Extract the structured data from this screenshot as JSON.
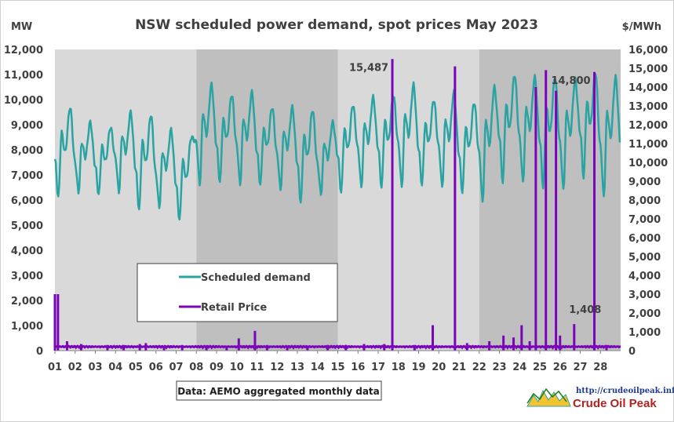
{
  "chart_data": {
    "type": "line",
    "title": "NSW scheduled power demand, spot prices May 2023",
    "y_left_label": "MW",
    "y_right_label": "$/MWh",
    "y_left_range": [
      0,
      12000
    ],
    "y_right_range": [
      0,
      16000
    ],
    "y_left_ticks": [
      "0",
      "1,000",
      "2,000",
      "3,000",
      "4,000",
      "5,000",
      "6,000",
      "7,000",
      "8,000",
      "9,000",
      "10,000",
      "11,000",
      "12,000"
    ],
    "y_right_ticks": [
      "0",
      "1,000",
      "2,000",
      "3,000",
      "4,000",
      "5,000",
      "6,000",
      "7,000",
      "8,000",
      "9,000",
      "10,000",
      "11,000",
      "12,000",
      "13,000",
      "14,000",
      "15,000",
      "16,000"
    ],
    "x_ticks": [
      "01",
      "02",
      "03",
      "04",
      "05",
      "06",
      "07",
      "08",
      "09",
      "10",
      "11",
      "12",
      "13",
      "14",
      "15",
      "16",
      "17",
      "18",
      "19",
      "20",
      "21",
      "22",
      "23",
      "24",
      "25",
      "26",
      "27",
      "28"
    ],
    "x_range": [
      1,
      29
    ],
    "week_bands": [
      {
        "from": 1,
        "to": 8,
        "shade": "light"
      },
      {
        "from": 8,
        "to": 15,
        "shade": "dark"
      },
      {
        "from": 15,
        "to": 22,
        "shade": "light"
      },
      {
        "from": 22,
        "to": 29,
        "shade": "dark"
      }
    ],
    "colors": {
      "demand": "#2aa3a3",
      "price": "#7a05b8",
      "band_light": "#d9d9d9",
      "band_dark": "#bfbfbf"
    },
    "series": [
      {
        "name": "Scheduled demand",
        "axis": "left",
        "daily": [
          {
            "day": 1,
            "min": 6100,
            "max": 9700
          },
          {
            "day": 2,
            "min": 6300,
            "max": 9100
          },
          {
            "day": 3,
            "min": 6200,
            "max": 8900
          },
          {
            "day": 4,
            "min": 6300,
            "max": 9500
          },
          {
            "day": 5,
            "min": 5600,
            "max": 9400
          },
          {
            "day": 6,
            "min": 5700,
            "max": 8800
          },
          {
            "day": 7,
            "min": 5200,
            "max": 8500
          },
          {
            "day": 8,
            "min": 6600,
            "max": 10600
          },
          {
            "day": 9,
            "min": 6700,
            "max": 10200
          },
          {
            "day": 10,
            "min": 6600,
            "max": 10300
          },
          {
            "day": 11,
            "min": 6600,
            "max": 9700
          },
          {
            "day": 12,
            "min": 6400,
            "max": 9700
          },
          {
            "day": 13,
            "min": 5900,
            "max": 9600
          },
          {
            "day": 14,
            "min": 6200,
            "max": 9100
          },
          {
            "day": 15,
            "min": 6300,
            "max": 9800
          },
          {
            "day": 16,
            "min": 6500,
            "max": 10100
          },
          {
            "day": 17,
            "min": 6500,
            "max": 10200
          },
          {
            "day": 18,
            "min": 6500,
            "max": 10600
          },
          {
            "day": 19,
            "min": 6600,
            "max": 10000
          },
          {
            "day": 20,
            "min": 6500,
            "max": 10300
          },
          {
            "day": 21,
            "min": 6300,
            "max": 9900
          },
          {
            "day": 22,
            "min": 5900,
            "max": 10500
          },
          {
            "day": 23,
            "min": 6700,
            "max": 11000
          },
          {
            "day": 24,
            "min": 6700,
            "max": 10900
          },
          {
            "day": 25,
            "min": 6500,
            "max": 10900
          },
          {
            "day": 26,
            "min": 6400,
            "max": 10800
          },
          {
            "day": 27,
            "min": 6900,
            "max": 11100
          },
          {
            "day": 28,
            "min": 6100,
            "max": 10900
          }
        ]
      },
      {
        "name": "Retail Price",
        "axis": "right",
        "baseline": 150,
        "spikes": [
          {
            "x": 1.0,
            "y": 3000
          },
          {
            "x": 1.15,
            "y": 3000
          },
          {
            "x": 1.6,
            "y": 500
          },
          {
            "x": 2.3,
            "y": 350
          },
          {
            "x": 3.6,
            "y": 300
          },
          {
            "x": 4.4,
            "y": 300
          },
          {
            "x": 5.2,
            "y": 350
          },
          {
            "x": 5.5,
            "y": 400
          },
          {
            "x": 6.4,
            "y": 250
          },
          {
            "x": 7.3,
            "y": 300
          },
          {
            "x": 8.5,
            "y": 250
          },
          {
            "x": 9.5,
            "y": 250
          },
          {
            "x": 10.1,
            "y": 650
          },
          {
            "x": 10.9,
            "y": 1050
          },
          {
            "x": 11.5,
            "y": 300
          },
          {
            "x": 12.5,
            "y": 250
          },
          {
            "x": 13.5,
            "y": 250
          },
          {
            "x": 14.5,
            "y": 300
          },
          {
            "x": 15.4,
            "y": 300
          },
          {
            "x": 16.3,
            "y": 350
          },
          {
            "x": 17.3,
            "y": 350
          },
          {
            "x": 17.7,
            "y": 15487
          },
          {
            "x": 18.8,
            "y": 300
          },
          {
            "x": 19.7,
            "y": 1350
          },
          {
            "x": 20.8,
            "y": 15100
          },
          {
            "x": 21.4,
            "y": 400
          },
          {
            "x": 22.5,
            "y": 500
          },
          {
            "x": 23.2,
            "y": 800
          },
          {
            "x": 23.7,
            "y": 700
          },
          {
            "x": 24.1,
            "y": 1350
          },
          {
            "x": 24.5,
            "y": 500
          },
          {
            "x": 24.8,
            "y": 14000
          },
          {
            "x": 25.3,
            "y": 14900
          },
          {
            "x": 25.8,
            "y": 13800
          },
          {
            "x": 26.0,
            "y": 800
          },
          {
            "x": 26.7,
            "y": 1408
          },
          {
            "x": 27.7,
            "y": 14800
          },
          {
            "x": 28.3,
            "y": 300
          }
        ]
      }
    ],
    "annotations": [
      {
        "text": "15,487",
        "x": 17.7,
        "y": 15487,
        "axis": "right"
      },
      {
        "text": "14,800",
        "x": 27.7,
        "y": 14800,
        "axis": "right"
      },
      {
        "text": "1,408",
        "x": 26.7,
        "y": 1408,
        "axis": "right"
      }
    ],
    "legend_position": "center-left",
    "grid": false
  },
  "source_note": "Data: AEMO aggregated monthly data",
  "branding": {
    "url": "http://crudeoilpeak.info",
    "name": "Crude Oil Peak"
  }
}
